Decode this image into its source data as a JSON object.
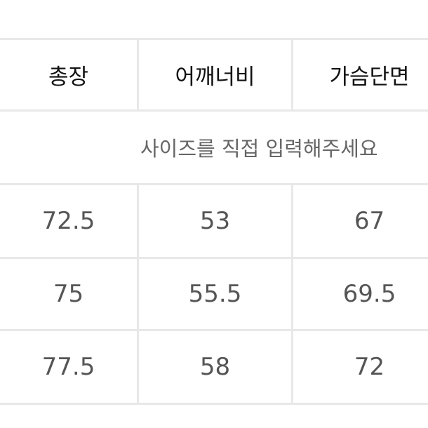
{
  "table": {
    "headers": [
      "총장",
      "어깨너비",
      "가슴단면"
    ],
    "note": "사이즈를 직접 입력해주세요",
    "rows": [
      [
        "72.5",
        "53",
        "67"
      ],
      [
        "75",
        "55.5",
        "69.5"
      ],
      [
        "77.5",
        "58",
        "72"
      ]
    ]
  }
}
